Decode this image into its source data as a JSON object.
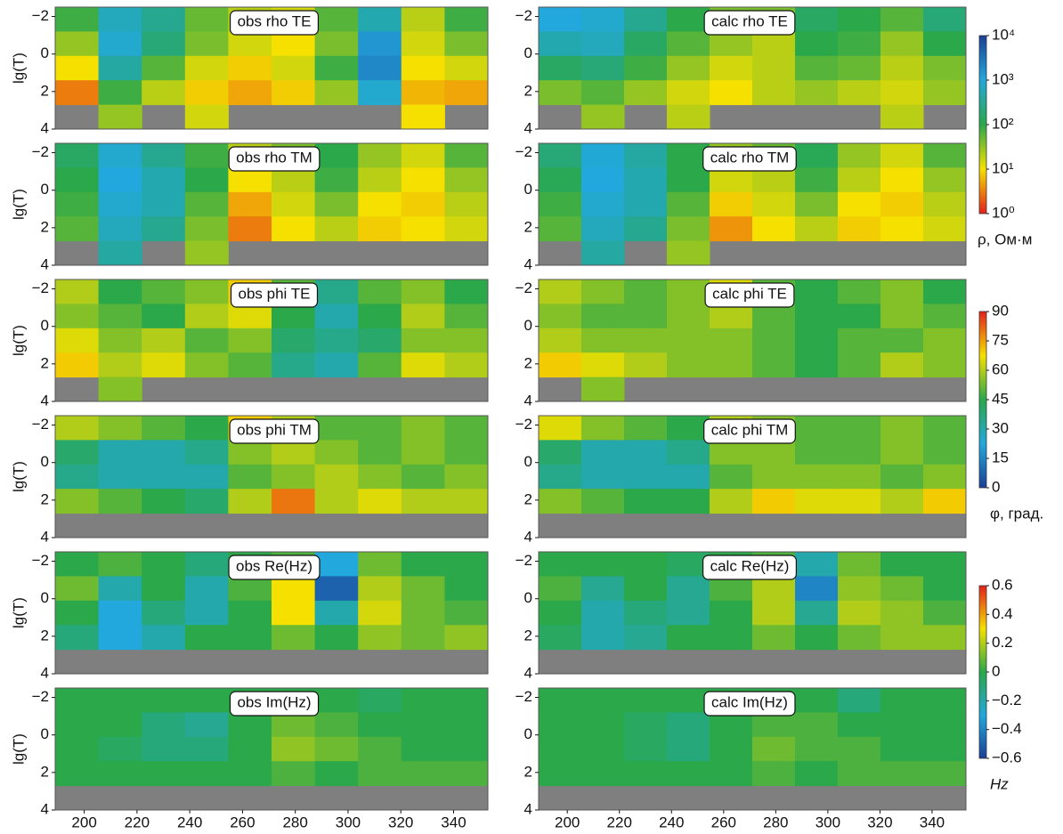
{
  "chart_data": [
    {
      "type": "heatmap",
      "title": "obs rho TE",
      "ylabel": "lg(T)",
      "xlim": [
        189,
        353
      ],
      "ylim": [
        -2.5,
        4
      ],
      "yticks": [
        {
          "value": -2,
          "label": "−2"
        },
        0,
        2,
        4
      ],
      "values": [
        [
          80,
          600,
          300,
          50,
          20,
          15,
          60,
          500,
          20,
          80
        ],
        [
          30,
          800,
          200,
          40,
          15,
          10,
          40,
          1500,
          15,
          40
        ],
        [
          10,
          400,
          60,
          15,
          8,
          15,
          80,
          2000,
          10,
          15
        ],
        [
          3,
          80,
          20,
          8,
          5,
          8,
          30,
          800,
          6,
          5
        ],
        [
          null,
          30,
          null,
          15,
          null,
          null,
          null,
          null,
          10,
          null
        ]
      ]
    },
    {
      "type": "heatmap",
      "title": "calc rho TE",
      "xlim": [
        189,
        353
      ],
      "ylim": [
        -2.5,
        4
      ],
      "yticks": [
        {
          "value": -2,
          "label": "−2"
        },
        0,
        2,
        4
      ],
      "values": [
        [
          1000,
          800,
          300,
          100,
          40,
          40,
          150,
          100,
          60,
          200
        ],
        [
          500,
          600,
          150,
          60,
          30,
          20,
          100,
          80,
          30,
          100
        ],
        [
          150,
          200,
          80,
          30,
          15,
          20,
          60,
          50,
          20,
          40
        ],
        [
          40,
          60,
          30,
          15,
          10,
          20,
          30,
          20,
          15,
          30
        ],
        [
          null,
          30,
          null,
          20,
          null,
          null,
          null,
          null,
          20,
          null
        ]
      ]
    },
    {
      "type": "heatmap",
      "title": "obs rho TM",
      "ylabel": "lg(T)",
      "xlim": [
        189,
        353
      ],
      "ylim": [
        -2.5,
        4
      ],
      "yticks": [
        {
          "value": -2,
          "label": "−2"
        },
        0,
        2,
        4
      ],
      "values": [
        [
          150,
          800,
          300,
          80,
          20,
          40,
          100,
          30,
          15,
          60
        ],
        [
          100,
          1000,
          500,
          100,
          10,
          20,
          80,
          20,
          10,
          30
        ],
        [
          80,
          800,
          500,
          60,
          5,
          15,
          40,
          10,
          8,
          20
        ],
        [
          60,
          600,
          300,
          40,
          3,
          10,
          20,
          8,
          10,
          15
        ],
        [
          null,
          400,
          null,
          30,
          null,
          null,
          null,
          null,
          null,
          null
        ]
      ]
    },
    {
      "type": "heatmap",
      "title": "calc rho TM",
      "xlim": [
        189,
        353
      ],
      "ylim": [
        -2.5,
        4
      ],
      "yticks": [
        {
          "value": -2,
          "label": "−2"
        },
        0,
        2,
        4
      ],
      "values": [
        [
          200,
          900,
          400,
          100,
          30,
          50,
          120,
          30,
          15,
          60
        ],
        [
          120,
          1000,
          500,
          100,
          15,
          20,
          80,
          20,
          10,
          30
        ],
        [
          80,
          800,
          500,
          60,
          8,
          15,
          40,
          10,
          8,
          20
        ],
        [
          60,
          600,
          300,
          40,
          4,
          10,
          20,
          8,
          10,
          15
        ],
        [
          null,
          400,
          null,
          30,
          null,
          null,
          null,
          null,
          null,
          null
        ]
      ]
    },
    {
      "type": "heatmap",
      "title": "obs phi TE",
      "ylabel": "lg(T)",
      "xlim": [
        189,
        353
      ],
      "ylim": [
        -2.5,
        4
      ],
      "yticks": [
        {
          "value": -2,
          "label": "−2"
        },
        0,
        2,
        4
      ],
      "values": [
        [
          60,
          45,
          50,
          55,
          70,
          50,
          35,
          50,
          55,
          45
        ],
        [
          55,
          50,
          45,
          60,
          65,
          45,
          30,
          45,
          60,
          50
        ],
        [
          65,
          55,
          60,
          50,
          55,
          40,
          35,
          40,
          55,
          55
        ],
        [
          70,
          60,
          65,
          55,
          50,
          35,
          30,
          50,
          65,
          60
        ],
        [
          null,
          55,
          null,
          null,
          null,
          null,
          null,
          null,
          null,
          null
        ]
      ]
    },
    {
      "type": "heatmap",
      "title": "calc phi TE",
      "xlim": [
        189,
        353
      ],
      "ylim": [
        -2.5,
        4
      ],
      "yticks": [
        {
          "value": -2,
          "label": "−2"
        },
        0,
        2,
        4
      ],
      "values": [
        [
          60,
          55,
          50,
          55,
          65,
          50,
          45,
          50,
          55,
          45
        ],
        [
          55,
          50,
          50,
          55,
          60,
          50,
          45,
          45,
          55,
          50
        ],
        [
          60,
          55,
          55,
          55,
          55,
          50,
          45,
          50,
          50,
          55
        ],
        [
          70,
          65,
          60,
          55,
          55,
          50,
          45,
          50,
          60,
          55
        ],
        [
          null,
          55,
          null,
          null,
          null,
          null,
          null,
          null,
          null,
          null
        ]
      ]
    },
    {
      "type": "heatmap",
      "title": "obs phi TM",
      "ylabel": "lg(T)",
      "xlim": [
        189,
        353
      ],
      "ylim": [
        -2.5,
        4
      ],
      "yticks": [
        {
          "value": -2,
          "label": "−2"
        },
        0,
        2,
        4
      ],
      "values": [
        [
          60,
          55,
          50,
          45,
          70,
          60,
          50,
          50,
          55,
          50
        ],
        [
          40,
          30,
          30,
          35,
          55,
          60,
          55,
          50,
          55,
          50
        ],
        [
          35,
          30,
          30,
          30,
          50,
          55,
          60,
          55,
          50,
          55
        ],
        [
          55,
          50,
          45,
          40,
          60,
          80,
          60,
          65,
          60,
          60
        ],
        [
          null,
          null,
          null,
          null,
          null,
          null,
          null,
          null,
          null,
          null
        ]
      ]
    },
    {
      "type": "heatmap",
      "title": "calc phi TM",
      "xlim": [
        189,
        353
      ],
      "ylim": [
        -2.5,
        4
      ],
      "yticks": [
        {
          "value": -2,
          "label": "−2"
        },
        0,
        2,
        4
      ],
      "values": [
        [
          65,
          55,
          50,
          45,
          60,
          55,
          50,
          50,
          55,
          50
        ],
        [
          40,
          30,
          30,
          35,
          55,
          55,
          50,
          50,
          55,
          50
        ],
        [
          35,
          30,
          30,
          30,
          50,
          55,
          55,
          55,
          50,
          55
        ],
        [
          55,
          50,
          45,
          45,
          60,
          70,
          65,
          65,
          60,
          70
        ],
        [
          null,
          null,
          null,
          null,
          null,
          null,
          null,
          null,
          null,
          null
        ]
      ]
    },
    {
      "type": "heatmap",
      "title": "obs Re(Hz)",
      "ylabel": "lg(T)",
      "xlim": [
        189,
        353
      ],
      "ylim": [
        -2.5,
        4
      ],
      "yticks": [
        {
          "value": -2,
          "label": "−2"
        },
        0,
        2,
        4
      ],
      "values": [
        [
          0,
          0.05,
          0,
          -0.1,
          0,
          0.05,
          -0.3,
          0.1,
          0,
          0
        ],
        [
          0.1,
          -0.2,
          0,
          -0.2,
          0.05,
          0.3,
          -0.5,
          0.2,
          0.1,
          0
        ],
        [
          0,
          -0.3,
          -0.1,
          -0.2,
          0,
          0.3,
          -0.2,
          0.25,
          0.1,
          0.05
        ],
        [
          -0.1,
          -0.3,
          -0.2,
          0,
          0,
          0.1,
          0,
          0.15,
          0.1,
          0.15
        ],
        [
          null,
          null,
          null,
          null,
          null,
          null,
          null,
          null,
          null,
          null
        ]
      ]
    },
    {
      "type": "heatmap",
      "title": "calc Re(Hz)",
      "xlim": [
        189,
        353
      ],
      "ylim": [
        -2.5,
        4
      ],
      "yticks": [
        {
          "value": -2,
          "label": "−2"
        },
        0,
        2,
        4
      ],
      "values": [
        [
          0,
          0,
          0,
          -0.05,
          0,
          0.05,
          -0.2,
          0.1,
          0,
          0
        ],
        [
          0.05,
          -0.15,
          0,
          -0.15,
          0.05,
          0.2,
          -0.4,
          0.15,
          0.1,
          0
        ],
        [
          0,
          -0.2,
          -0.1,
          -0.15,
          0,
          0.2,
          -0.15,
          0.2,
          0.15,
          0.05
        ],
        [
          -0.05,
          -0.2,
          -0.15,
          0,
          0,
          0.1,
          0,
          0.1,
          0.15,
          0.15
        ],
        [
          null,
          null,
          null,
          null,
          null,
          null,
          null,
          null,
          null,
          null
        ]
      ]
    },
    {
      "type": "heatmap",
      "title": "obs Im(Hz)",
      "ylabel": "lg(T)",
      "xlim": [
        189,
        353
      ],
      "ylim": [
        -2.5,
        4
      ],
      "yticks": [
        {
          "value": -2,
          "label": "−2"
        },
        0,
        2,
        4
      ],
      "xticks": [
        200,
        220,
        240,
        260,
        280,
        300,
        320,
        340
      ],
      "values": [
        [
          0,
          0,
          0,
          0,
          0,
          0,
          0,
          -0.05,
          0,
          0
        ],
        [
          0,
          0,
          -0.1,
          -0.15,
          0,
          0.1,
          0.05,
          0,
          0,
          0
        ],
        [
          0,
          -0.05,
          -0.1,
          -0.1,
          0,
          0.15,
          0.1,
          0.05,
          0,
          0
        ],
        [
          0,
          0,
          0,
          0,
          0,
          0.05,
          0,
          0.05,
          0.05,
          0.05
        ],
        [
          null,
          null,
          null,
          null,
          null,
          null,
          null,
          null,
          null,
          null
        ]
      ]
    },
    {
      "type": "heatmap",
      "title": "calc Im(Hz)",
      "xlim": [
        189,
        353
      ],
      "ylim": [
        -2.5,
        4
      ],
      "yticks": [
        {
          "value": -2,
          "label": "−2"
        },
        0,
        2,
        4
      ],
      "xticks": [
        200,
        220,
        240,
        260,
        280,
        300,
        320,
        340
      ],
      "values": [
        [
          0,
          0,
          0,
          0,
          0,
          0,
          0,
          -0.1,
          0,
          0
        ],
        [
          0,
          0,
          -0.05,
          -0.1,
          0,
          0.05,
          0.05,
          0,
          0,
          0
        ],
        [
          0,
          0,
          -0.05,
          -0.1,
          0,
          0.1,
          0.05,
          0.05,
          0,
          0
        ],
        [
          0,
          0,
          0,
          0,
          0,
          0.05,
          0,
          0.05,
          0.05,
          0.05
        ],
        [
          null,
          null,
          null,
          null,
          null,
          null,
          null,
          null,
          null,
          null
        ]
      ]
    }
  ],
  "colorbars": [
    {
      "label": "ρ, Ом·м",
      "scale": "log",
      "lim": [
        1,
        10000
      ],
      "ticks": [
        {
          "value": 1,
          "label": "10⁰"
        },
        {
          "value": 10,
          "label": "10¹"
        },
        {
          "value": 100,
          "label": "10²"
        },
        {
          "value": 1000,
          "label": "10³"
        },
        {
          "value": 10000,
          "label": "10⁴"
        }
      ],
      "colors": [
        "#e3201b",
        "#f5e000",
        "#2aa84a",
        "#22a8dc",
        "#1a3f96"
      ]
    },
    {
      "label": "φ, град.",
      "scale": "linear",
      "lim": [
        0,
        90
      ],
      "ticks": [
        0,
        15,
        30,
        45,
        60,
        75,
        90
      ],
      "colors": [
        "#1a3f96",
        "#22a8dc",
        "#2aa84a",
        "#f5e000",
        "#e3201b"
      ]
    },
    {
      "label": "Hz",
      "scale": "linear",
      "lim": [
        -0.6,
        0.6
      ],
      "ticks": [
        {
          "value": -0.6,
          "label": "−0.6"
        },
        {
          "value": -0.4,
          "label": "−0.4"
        },
        {
          "value": -0.2,
          "label": "−0.2"
        },
        0,
        0.2,
        0.4,
        0.6
      ],
      "colors": [
        "#1a3f96",
        "#22a8dc",
        "#2aa84a",
        "#f5e000",
        "#e3201b"
      ]
    }
  ]
}
